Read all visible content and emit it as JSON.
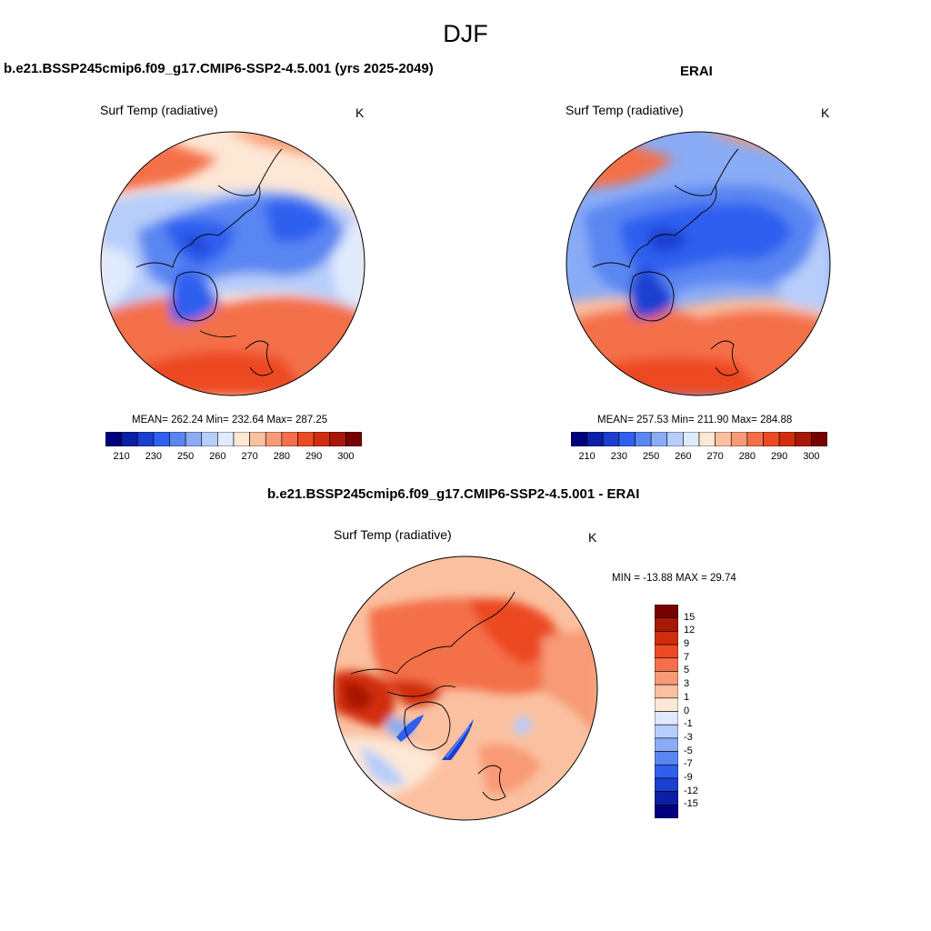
{
  "figure": {
    "season": "DJF"
  },
  "panels": {
    "model": {
      "title": "b.e21.BSSP245cmip6.f09_g17.CMIP6-SSP2-4.5.001 (yrs 2025-2049)",
      "variable": "Surf Temp (radiative)",
      "units": "K",
      "stats": "MEAN= 262.24  Min= 232.64  Max= 287.25"
    },
    "obs": {
      "title": "ERAI",
      "variable": "Surf Temp (radiative)",
      "units": "K",
      "stats": "MEAN= 257.53  Min= 211.90  Max= 284.88"
    },
    "diff": {
      "title": "b.e21.BSSP245cmip6.f09_g17.CMIP6-SSP2-4.5.001 - ERAI",
      "variable": "Surf Temp (radiative)",
      "units": "K",
      "stats": "MIN = -13.88 MAX =  29.74"
    }
  },
  "colorbars": {
    "abs": {
      "colors": [
        "#00007f",
        "#0a1fa6",
        "#1a3fd1",
        "#2f5fef",
        "#5a86f2",
        "#8aabf5",
        "#b7cdfa",
        "#dfeafd",
        "#fde7d5",
        "#fbc0a0",
        "#f79a75",
        "#f46f4a",
        "#ec4a22",
        "#d12d0c",
        "#a81806",
        "#780000"
      ],
      "ticks": [
        "210",
        "230",
        "250",
        "260",
        "270",
        "280",
        "290",
        "300"
      ]
    },
    "diff": {
      "colors": [
        "#780000",
        "#a81806",
        "#d12d0c",
        "#ec4a22",
        "#f46f4a",
        "#f79a75",
        "#fbc0a0",
        "#fde7d5",
        "#dfeafd",
        "#b7cdfa",
        "#8aabf5",
        "#5a86f2",
        "#2f5fef",
        "#1a3fd1",
        "#0a1fa6",
        "#00007f"
      ],
      "ticks": [
        "15",
        "12",
        "9",
        "7",
        "5",
        "3",
        "1",
        "0",
        "-1",
        "-3",
        "-5",
        "-7",
        "-9",
        "-12",
        "-15"
      ]
    }
  }
}
